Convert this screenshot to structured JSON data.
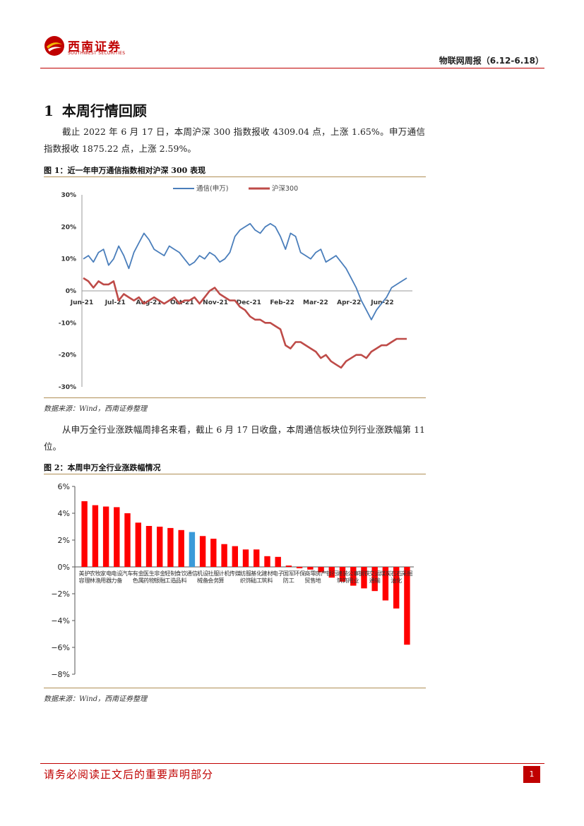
{
  "header": {
    "logo_cn": "西南证券",
    "logo_en": "SOUTHWEST SECURITIES",
    "report_title": "物联网周报（6.12-6.18）"
  },
  "section": {
    "number": "1",
    "title": "本周行情回顾"
  },
  "paragraph1": "截止 2022 年 6 月 17 日，本周沪深 300 指数报收 4309.04 点，上涨 1.65%。申万通信指数报收 1875.22 点，上涨 2.59%。",
  "figure1": {
    "title": "图 1：近一年申万通信指数相对沪深 300 表现",
    "source": "数据来源：Wind，西南证券整理"
  },
  "paragraph2": "从申万全行业涨跌幅周排名来看，截止 6 月 17 日收盘，本周通信板块位列行业涨跌幅第 11 位。",
  "figure2": {
    "title": "图 2：本周申万全行业涨跌幅情况",
    "source": "数据来源：Wind，西南证券整理"
  },
  "footer": {
    "disclaimer": "请务必阅读正文后的重要声明部分",
    "page": "1"
  },
  "colors": {
    "brand_red": "#c00000",
    "line_blue": "#4a7ebb",
    "line_red": "#be4b48",
    "bar_red": "#ff0000",
    "bar_blue": "#3a9ad9"
  },
  "chart_data": [
    {
      "type": "line",
      "title": "近一年申万通信指数相对沪深 300 表现",
      "x_ticks": [
        "Jun-21",
        "Jul-21",
        "Aug-21",
        "Oct-21",
        "Nov-21",
        "Dec-21",
        "Feb-22",
        "Mar-22",
        "Apr-22",
        "Jun-22"
      ],
      "y_ticks": [
        "30%",
        "20%",
        "10%",
        "0%",
        "-10%",
        "-20%",
        "-30%"
      ],
      "ylim": [
        -30,
        30
      ],
      "series": [
        {
          "name": "通信(申万)",
          "values": [
            10,
            11,
            9,
            12,
            13,
            8,
            10,
            14,
            11,
            7,
            12,
            15,
            18,
            16,
            13,
            12,
            11,
            14,
            13,
            12,
            10,
            8,
            9,
            11,
            10,
            12,
            11,
            9,
            10,
            12,
            17,
            19,
            20,
            21,
            19,
            18,
            20,
            21,
            20,
            17,
            13,
            18,
            17,
            12,
            11,
            10,
            12,
            13,
            9,
            10,
            11,
            9,
            7,
            4,
            1,
            -3,
            -6,
            -9,
            -6,
            -4,
            -2,
            1,
            2,
            3,
            4
          ]
        },
        {
          "name": "沪深300",
          "values": [
            4,
            3,
            1,
            3,
            2,
            2,
            3,
            -3,
            -1,
            -2,
            -3,
            -2,
            -4,
            -3,
            -2,
            -3,
            -4,
            -3,
            -2,
            -4,
            -3,
            -3,
            -2,
            -4,
            -2,
            0,
            1,
            -1,
            -2,
            -3,
            -3,
            -5,
            -6,
            -8,
            -9,
            -9,
            -10,
            -10,
            -11,
            -12,
            -17,
            -18,
            -16,
            -16,
            -17,
            -18,
            -19,
            -21,
            -20,
            -22,
            -23,
            -24,
            -22,
            -21,
            -20,
            -20,
            -21,
            -19,
            -18,
            -17,
            -17,
            -16,
            -15,
            -15,
            -15
          ]
        }
      ]
    },
    {
      "type": "bar",
      "title": "本周申万全行业涨跌幅情况",
      "y_ticks": [
        "6%",
        "4%",
        "2%",
        "0%",
        "-2%",
        "-4%",
        "-6%",
        "-8%"
      ],
      "ylim": [
        -8,
        6
      ],
      "highlight": "通信",
      "categories": [
        "美容护理",
        "农林牧渔",
        "家用电器",
        "电力设备",
        "汽车",
        "有色金属",
        "医药生物",
        "非银金融",
        "轻工制造",
        "食品饮料",
        "通信",
        "机械设备",
        "社会服务",
        "计算机",
        "传媒",
        "纺织服饰",
        "基础化工",
        "建筑材料",
        "电子",
        "国防军工",
        "环保",
        "商贸零售",
        "房地产",
        "银行",
        "建筑装饰",
        "公用事业",
        "钢铁",
        "交通运输",
        "煤炭",
        "石油石化",
        "采掘"
      ],
      "values": [
        4.9,
        4.6,
        4.5,
        4.45,
        4.0,
        3.3,
        3.05,
        3.0,
        2.9,
        2.75,
        2.6,
        2.3,
        2.1,
        1.7,
        1.55,
        1.3,
        1.3,
        0.8,
        0.75,
        0.1,
        -0.1,
        -0.2,
        -0.4,
        -0.8,
        -1.1,
        -1.4,
        -1.6,
        -1.8,
        -2.5,
        -3.1,
        -5.8
      ]
    }
  ]
}
